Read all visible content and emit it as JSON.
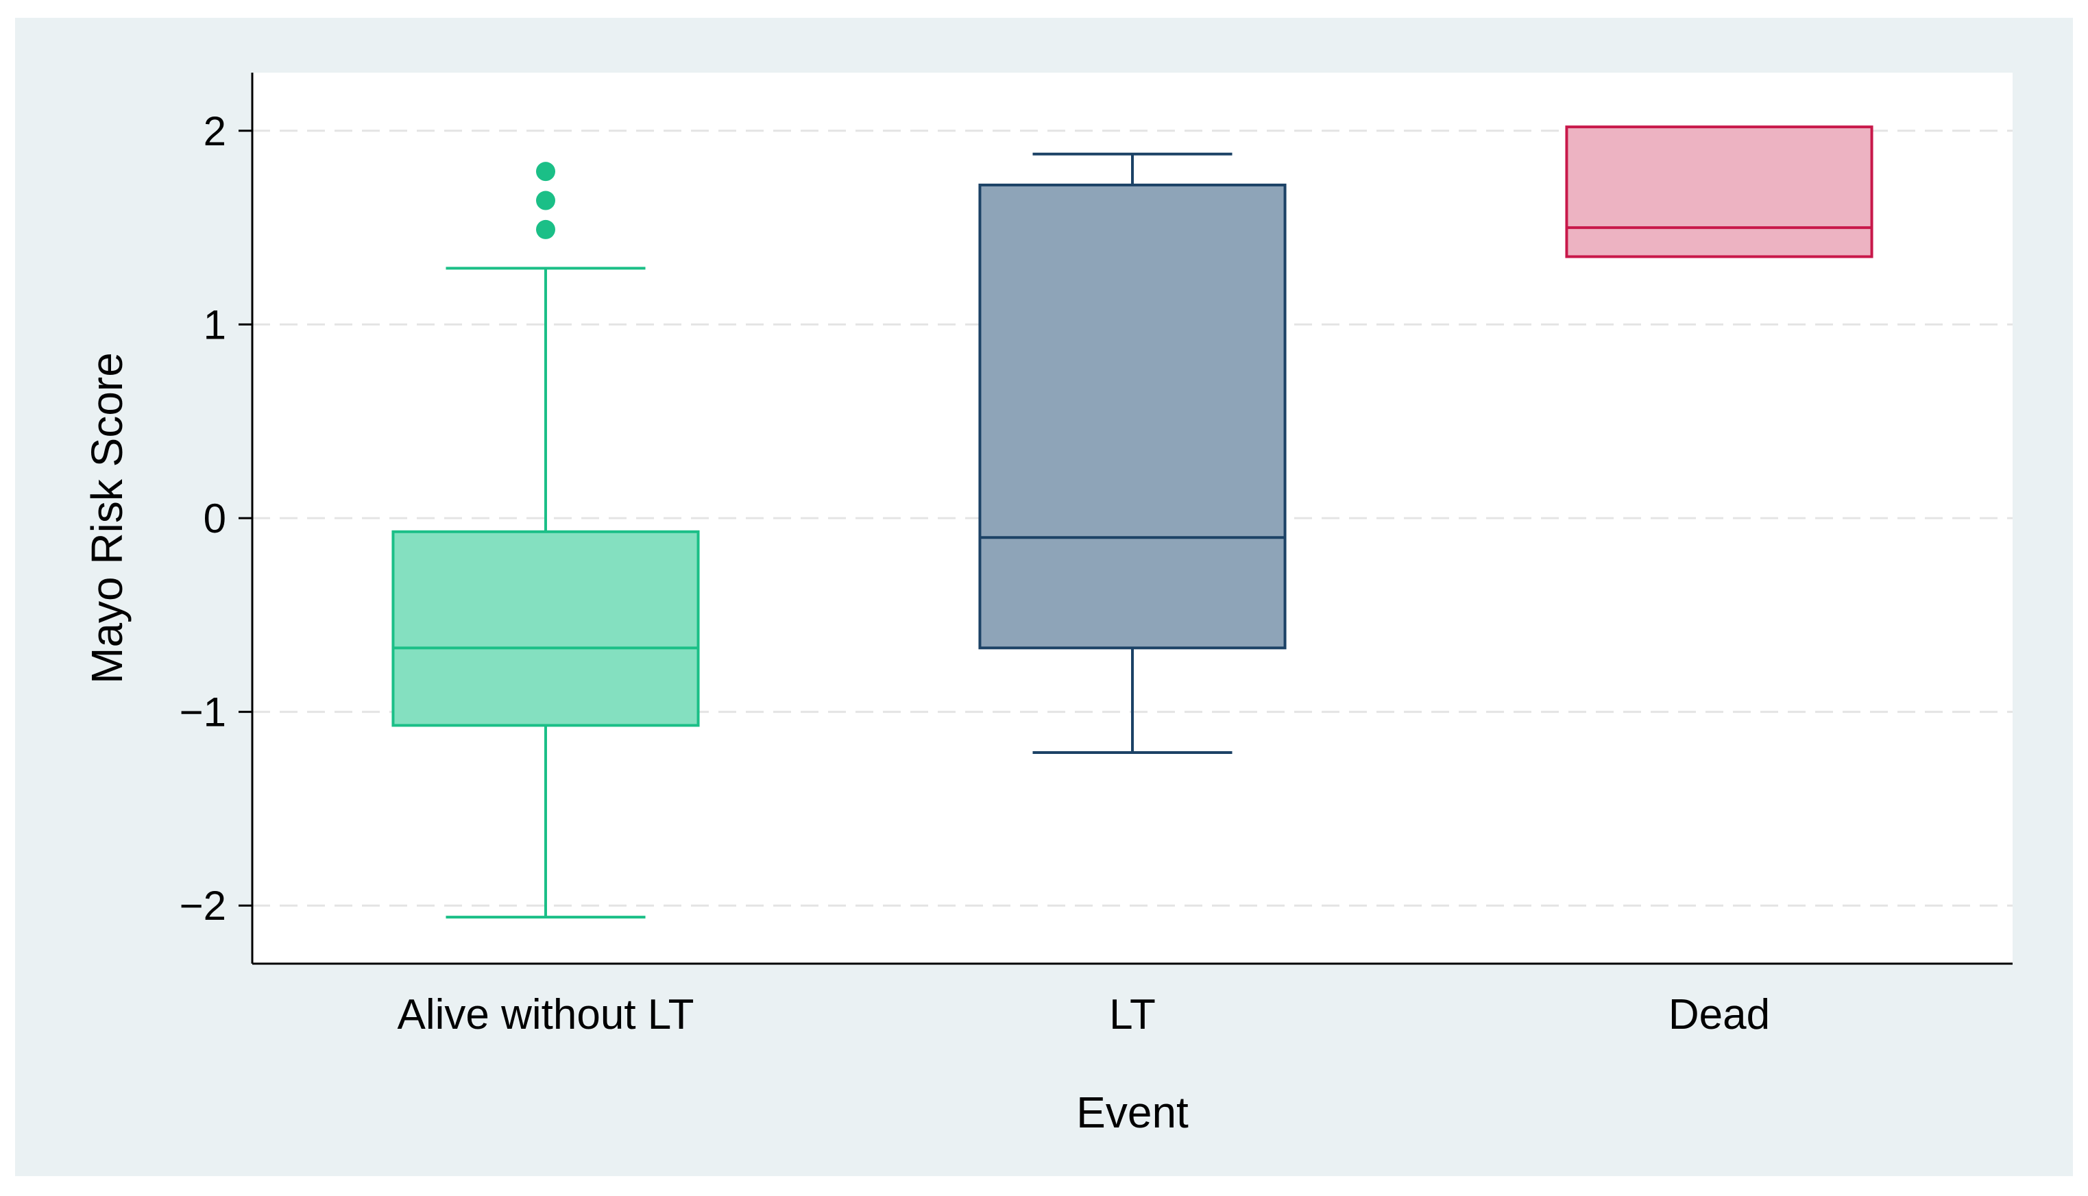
{
  "chart_data": {
    "type": "box",
    "xlabel": "Event",
    "ylabel": "Mayo Risk Score",
    "ylim": [
      -2.3,
      2.3
    ],
    "yticks": [
      {
        "value": 2,
        "label": "2"
      },
      {
        "value": 1,
        "label": "1"
      },
      {
        "value": 0,
        "label": "0"
      },
      {
        "value": -1,
        "label": "−1"
      },
      {
        "value": -2,
        "label": "−2"
      }
    ],
    "grid": true,
    "categories": [
      "Alive without LT",
      "LT",
      "Dead"
    ],
    "boxes": [
      {
        "category": "Alive without LT",
        "whisker_low": -2.06,
        "q1": -1.07,
        "median": -0.67,
        "q3": -0.07,
        "whisker_high": 1.29,
        "outliers": [
          1.49,
          1.64,
          1.79
        ],
        "fill": "#84e0c0",
        "stroke": "#1bbf87"
      },
      {
        "category": "LT",
        "whisker_low": -1.21,
        "q1": -0.67,
        "median": -0.1,
        "q3": 1.72,
        "whisker_high": 1.88,
        "outliers": [],
        "fill": "#8ea4b8",
        "stroke": "#1c4266"
      },
      {
        "category": "Dead",
        "whisker_low": 1.35,
        "q1": 1.35,
        "median": 1.5,
        "q3": 2.02,
        "whisker_high": 2.02,
        "outliers": [],
        "fill": "#edb3c2",
        "stroke": "#c8184a"
      }
    ],
    "colors": {
      "outer_background": "#eaf1f3",
      "plot_background": "#ffffff",
      "gridline": "#e4e4e4",
      "axis": "#000000"
    }
  }
}
